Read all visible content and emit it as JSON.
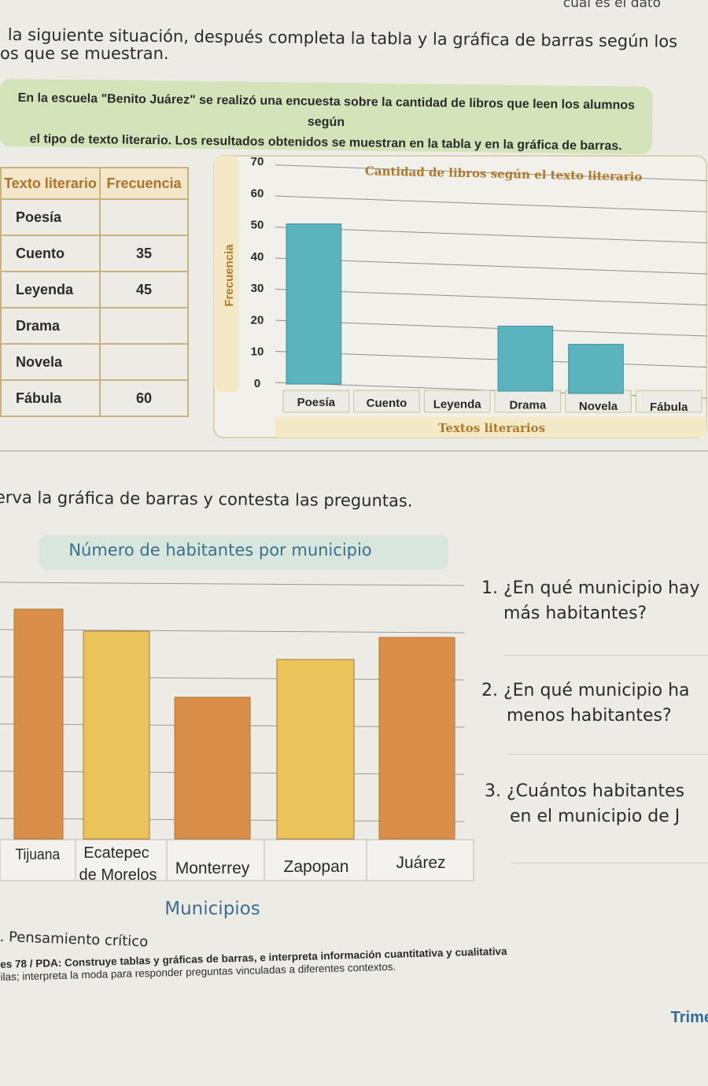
{
  "top_right_text": "cuál es el dato",
  "instructions": {
    "line1": "la siguiente situación, después completa la tabla y la gráfica de barras según los",
    "line2": "os que se muestran."
  },
  "situation": {
    "line1": "En la escuela \"Benito Juárez\" se realizó una encuesta sobre la cantidad de libros que leen los alumnos según",
    "line2": "el tipo de texto literario. Los resultados obtenidos se muestran en la tabla y en la gráfica de barras."
  },
  "table": {
    "headers": [
      "Texto literario",
      "Frecuencia"
    ],
    "rows": [
      {
        "label": "Poesía",
        "value": ""
      },
      {
        "label": "Cuento",
        "value": "35"
      },
      {
        "label": "Leyenda",
        "value": "45"
      },
      {
        "label": "Drama",
        "value": ""
      },
      {
        "label": "Novela",
        "value": ""
      },
      {
        "label": "Fábula",
        "value": "60"
      }
    ]
  },
  "chart_data": [
    {
      "type": "bar",
      "title": "Cantidad de libros según el texto literario",
      "xlabel": "Textos literarios",
      "ylabel": "Frecuencia",
      "categories": [
        "Poesía",
        "Cuento",
        "Leyenda",
        "Drama",
        "Novela",
        "Fábula"
      ],
      "values": [
        50,
        null,
        null,
        20,
        15,
        null
      ],
      "yticks": [
        0,
        10,
        20,
        30,
        40,
        50,
        60,
        70
      ],
      "ylim": [
        0,
        70
      ],
      "grid": true,
      "bar_color": "#5bb3bd"
    },
    {
      "type": "bar",
      "title": "Número de habitantes por municipio",
      "xlabel": "Municipios",
      "categories": [
        "Tijuana",
        "Ecatepec de Morelos",
        "Monterrey",
        "Zapopan",
        "Juárez"
      ],
      "values": [
        7.3,
        6.6,
        4.5,
        5.7,
        6.4
      ],
      "colors": [
        "#d98f4a",
        "#e8c45a",
        "#d98f4a",
        "#e8c45a",
        "#d98f4a"
      ],
      "grid": true
    }
  ],
  "instruction2": "erva la gráfica de barras y contesta las preguntas.",
  "questions": [
    {
      "line1": "1. ¿En qué municipio hay",
      "line2": "más habitantes?"
    },
    {
      "line1": "2. ¿En qué municipio ha",
      "line2": "menos habitantes?"
    },
    {
      "line1": "3. ¿Cuántos habitantes",
      "line2": "en el municipio de J"
    }
  ],
  "footer": {
    "pensamiento": ". Pensamiento crítico",
    "pda_line1": "es 78 / PDA: Construye tablas y gráficas de barras, e interpreta información cuantitativa y cualitativa",
    "pda_line2": "ilas; interpreta la moda para responder preguntas vinculadas a diferentes contextos.",
    "trim": "Trime"
  }
}
